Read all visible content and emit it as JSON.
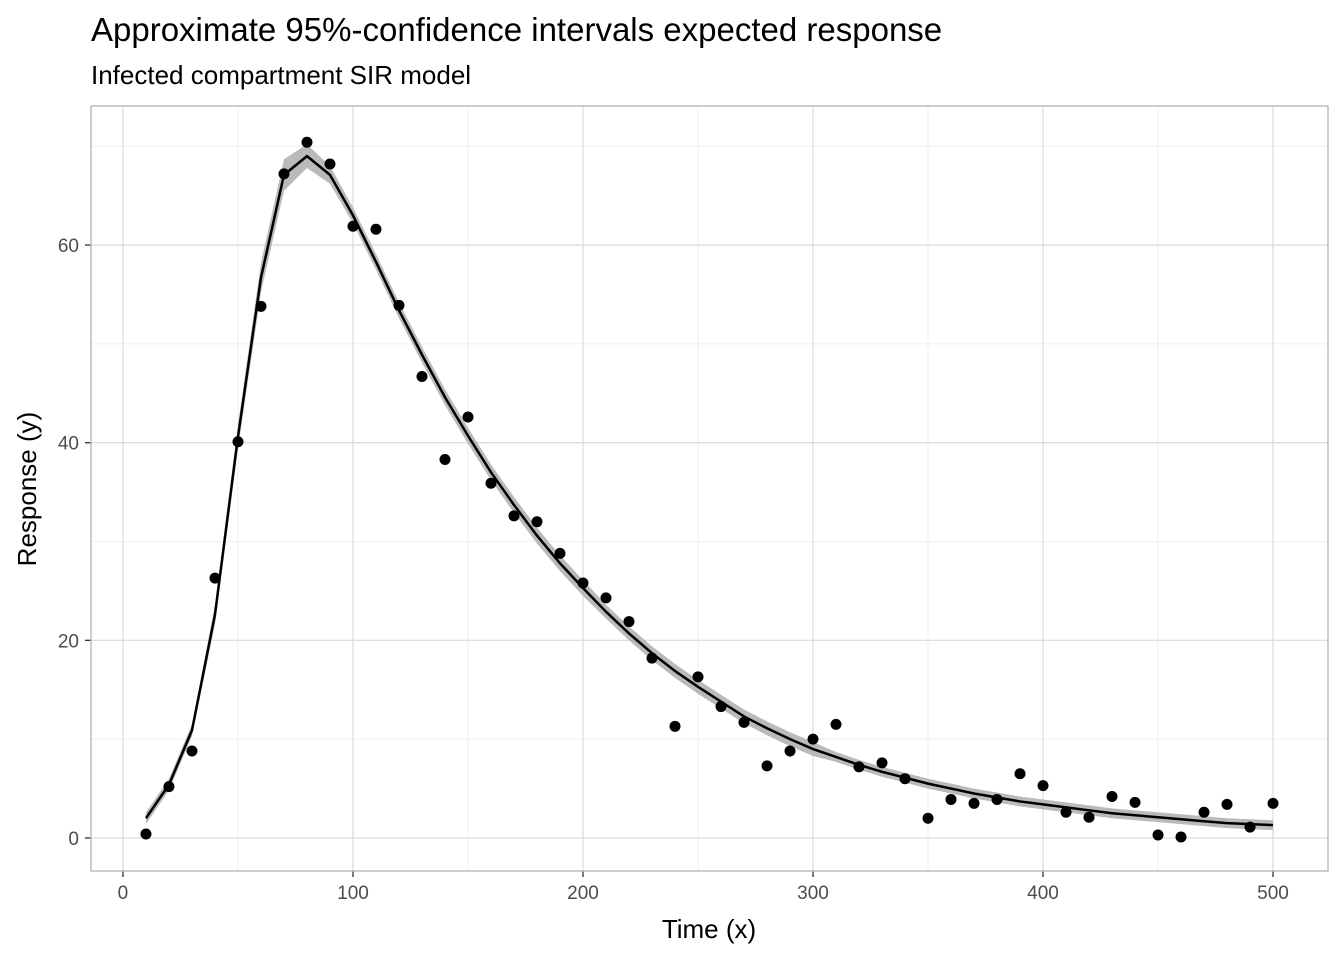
{
  "chart_data": {
    "type": "line",
    "title": "Approximate 95%-confidence intervals expected response",
    "subtitle": "Infected compartment SIR model",
    "x_label": "Time (x)",
    "y_label": "Response (y)",
    "x": [
      10,
      20,
      30,
      40,
      50,
      60,
      70,
      80,
      90,
      100,
      110,
      120,
      130,
      140,
      150,
      160,
      170,
      180,
      190,
      200,
      210,
      220,
      230,
      240,
      250,
      260,
      270,
      280,
      290,
      300,
      310,
      320,
      330,
      340,
      350,
      360,
      370,
      380,
      390,
      400,
      410,
      420,
      430,
      440,
      450,
      460,
      470,
      480,
      490,
      500
    ],
    "observed": [
      0.4,
      5.2,
      8.8,
      26.3,
      40.1,
      53.8,
      67.2,
      70.4,
      68.2,
      61.9,
      61.6,
      53.9,
      46.7,
      38.3,
      42.6,
      35.9,
      32.6,
      32.0,
      28.8,
      25.8,
      24.3,
      21.9,
      18.2,
      11.3,
      16.3,
      13.3,
      11.7,
      7.3,
      8.8,
      10.0,
      11.5,
      7.2,
      7.6,
      6.0,
      2.0,
      3.9,
      3.5,
      3.9,
      6.5,
      5.3,
      2.6,
      2.1,
      4.2,
      3.6,
      0.3,
      0.1,
      2.6,
      3.4,
      1.1,
      3.5
    ],
    "fit": [
      2.0,
      5.4,
      10.9,
      22.6,
      40.6,
      56.7,
      67.1,
      69.0,
      67.1,
      63.0,
      58.3,
      53.4,
      48.9,
      44.6,
      40.7,
      37.0,
      33.7,
      30.6,
      27.8,
      25.3,
      22.9,
      20.7,
      18.7,
      16.9,
      15.3,
      13.8,
      12.3,
      11.1,
      10.0,
      9.0,
      8.2,
      7.4,
      6.7,
      6.1,
      5.5,
      5.0,
      4.5,
      4.1,
      3.7,
      3.4,
      3.1,
      2.8,
      2.5,
      2.3,
      2.1,
      1.9,
      1.7,
      1.5,
      1.4,
      1.3
    ],
    "ci_lower": [
      1.4,
      4.8,
      10.3,
      21.6,
      39.4,
      55.2,
      65.5,
      67.8,
      66.2,
      62.2,
      57.5,
      52.6,
      48.1,
      43.8,
      39.9,
      36.2,
      32.9,
      29.8,
      27.0,
      24.5,
      22.2,
      20.0,
      18.0,
      16.2,
      14.6,
      13.1,
      11.6,
      10.4,
      9.3,
      8.3,
      7.7,
      6.9,
      6.2,
      5.6,
      5.0,
      4.5,
      4.0,
      3.6,
      3.2,
      2.9,
      2.6,
      2.3,
      2.0,
      1.8,
      1.6,
      1.4,
      1.2,
      1.0,
      0.9,
      0.8
    ],
    "ci_upper": [
      2.6,
      6.0,
      11.5,
      23.6,
      41.8,
      58.2,
      68.7,
      70.2,
      68.0,
      63.8,
      59.1,
      54.2,
      49.7,
      45.4,
      41.5,
      37.8,
      34.5,
      31.4,
      28.6,
      26.1,
      23.6,
      21.4,
      19.4,
      17.6,
      16.0,
      14.5,
      13.0,
      11.8,
      10.7,
      9.7,
      8.7,
      7.9,
      7.2,
      6.6,
      6.0,
      5.5,
      5.0,
      4.6,
      4.2,
      3.9,
      3.6,
      3.3,
      3.0,
      2.8,
      2.6,
      2.4,
      2.2,
      2.0,
      1.9,
      1.8
    ],
    "point_color": "#000000",
    "line_color": "#000000",
    "ribbon_color": "#b3b3b3",
    "xlim": [
      -13.9,
      523.9
    ],
    "ylim": [
      -3.34,
      74.07
    ],
    "xticks": [
      0,
      100,
      200,
      300,
      400,
      500
    ],
    "yticks": [
      0,
      20,
      40,
      60
    ],
    "minor_xticks": [
      50,
      150,
      250,
      350,
      450
    ],
    "minor_yticks": [
      10,
      30,
      50,
      70
    ],
    "grid": true
  }
}
